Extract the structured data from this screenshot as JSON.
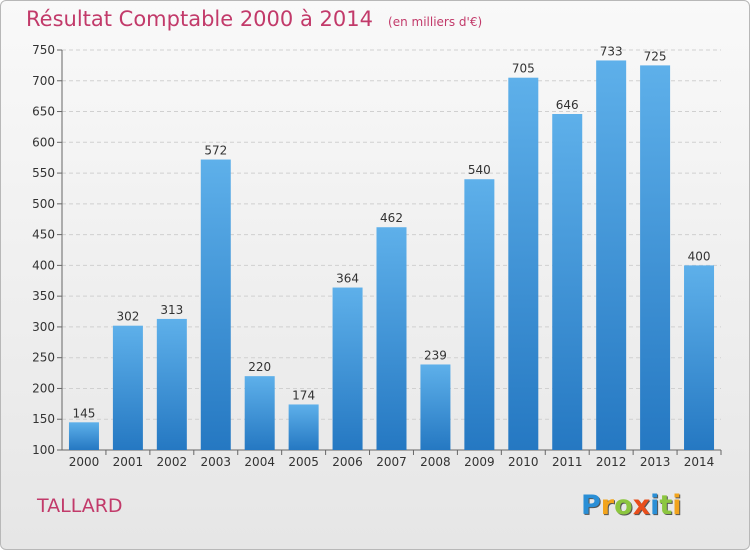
{
  "chart_data": {
    "type": "bar",
    "title": "Résultat Comptable 2000 à 2014",
    "subtitle": "(en milliers d'€)",
    "categories": [
      "2000",
      "2001",
      "2002",
      "2003",
      "2004",
      "2005",
      "2006",
      "2007",
      "2008",
      "2009",
      "2010",
      "2011",
      "2012",
      "2013",
      "2014"
    ],
    "values": [
      145,
      302,
      313,
      572,
      220,
      174,
      364,
      462,
      239,
      540,
      705,
      646,
      733,
      725,
      400
    ],
    "ylim": [
      100,
      750
    ],
    "yticks": [
      100,
      150,
      200,
      250,
      300,
      350,
      400,
      450,
      500,
      550,
      600,
      650,
      700,
      750
    ],
    "grid": true,
    "bar_color": "#3d95d9"
  },
  "commune": "TALLARD",
  "logo": {
    "letters": [
      "P",
      "r",
      "o",
      "x",
      "i",
      "t",
      "i"
    ],
    "colors": [
      "#2a8fd6",
      "#f2a41c",
      "#8cc63f",
      "#e94e1b",
      "#2a8fd6",
      "#8cc63f",
      "#f2a41c"
    ]
  }
}
